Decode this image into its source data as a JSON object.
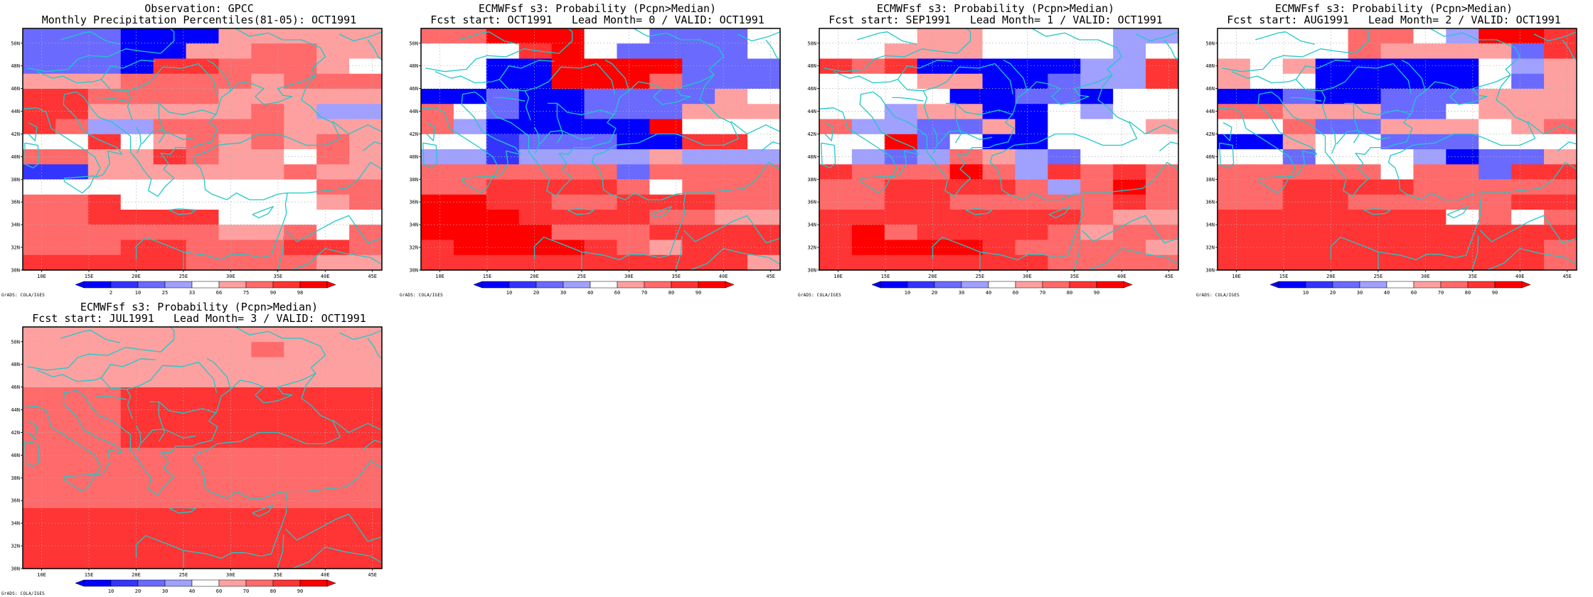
{
  "credit": "GrADS: COLA/IGES",
  "colors": {
    "ramp": [
      "#0000ff",
      "#3434ff",
      "#6a6aff",
      "#a0a0ff",
      "#ffffff",
      "#ffa0a0",
      "#ff6a6a",
      "#ff3434",
      "#ff0000"
    ],
    "coast": "#20c8c8",
    "grid": "#b0b0b0"
  },
  "lat_labels": [
    "30N",
    "32N",
    "34N",
    "36N",
    "38N",
    "40N",
    "42N",
    "44N",
    "46N",
    "48N",
    "50N"
  ],
  "lon_labels": [
    "10E",
    "15E",
    "20E",
    "25E",
    "30E",
    "35E",
    "40E",
    "45E"
  ],
  "panels": [
    {
      "title1": "Observation: GPCC",
      "title2": "Monthly Precipitation Percentiles(81-05): OCT1991",
      "colorbar_labels": [
        "2",
        "10",
        "25",
        "33",
        "66",
        "75",
        "90",
        "98"
      ],
      "grid": [
        "22200055555",
        "22200556655",
        "22207766654",
        "55566665666",
        "77666655555",
        "77555556533",
        "76336666555",
        "44745656565",
        "66557655465",
        "11555555655",
        "44444444466",
        "66744444456",
        "66777744444",
        "66666655646",
        "66677666776",
        "77777666655"
      ]
    },
    {
      "title1": "ECMWFsf s3: Probability (Pcpn>Median)",
      "title2": "Fcst start: OCT1991   Lead Month= 0 / VALID: OCT1991",
      "colorbar_labels": [
        "10",
        "20",
        "30",
        "40",
        "60",
        "70",
        "80",
        "90"
      ],
      "grid": [
        "66888442224",
        "44478422224",
        "44008888222",
        "44008886222",
        "00200222254",
        "64200222555",
        "63000008444",
        "44122200774",
        "33133335333",
        "66666626666",
        "66777764666",
        "88776677766",
        "88877776655",
        "88886667777",
        "78888765777",
        "77777777775"
      ]
    },
    {
      "title1": "ECMWFsf s3: Probability (Pcpn>Median)",
      "title2": "Fcst start: SEP1991   Lead Month= 1 / VALID: OCT1991",
      "colorbar_labels": [
        "10",
        "20",
        "30",
        "40",
        "60",
        "70",
        "80",
        "90"
      ],
      "grid": [
        "44455444433",
        "44555444434",
        "76700000337",
        "44455002337",
        "44440022044",
        "44355004344",
        "63322504445",
        "44824004444",
        "43236532444",
        "76668637676",
        "66777763686",
        "66776666676",
        "77777777655",
        "78677776566",
        "78888766665",
        "77777776666"
      ]
    },
    {
      "title1": "ECMWFsf s3: Probability (Pcpn>Median)",
      "title2": "Fcst start: AUG1991   Lead Month= 2 / VALID: OCT1991",
      "colorbar_labels": [
        "10",
        "20",
        "30",
        "40",
        "60",
        "70",
        "80",
        "90"
      ],
      "grid": [
        "44446643887",
        "44446555527",
        "54500000435",
        "54400000425",
        "00200222555",
        "66555224555",
        "44622555456",
        "00544222444",
        "44244430225",
        "66666466277",
        "66777766666",
        "66776666677",
        "77777774646",
        "77777777777",
        "77777777776",
        "77777777776"
      ]
    },
    {
      "title1": "ECMWFsf s3: Probability (Pcpn>Median)",
      "title2": "Fcst start: JUL1991   Lead Month= 3 / VALID: OCT1991",
      "colorbar_labels": [
        "10",
        "20",
        "30",
        "40",
        "60",
        "70",
        "80",
        "90"
      ],
      "grid": [
        "55555555555",
        "55555556555",
        "55555555555",
        "55555555555",
        "66677777777",
        "66677777777",
        "66677777777",
        "66677777777",
        "66666666666",
        "66666666666",
        "66666666666",
        "66666666666",
        "77777777777",
        "77777777777",
        "77777777777",
        "77777777777"
      ]
    }
  ]
}
